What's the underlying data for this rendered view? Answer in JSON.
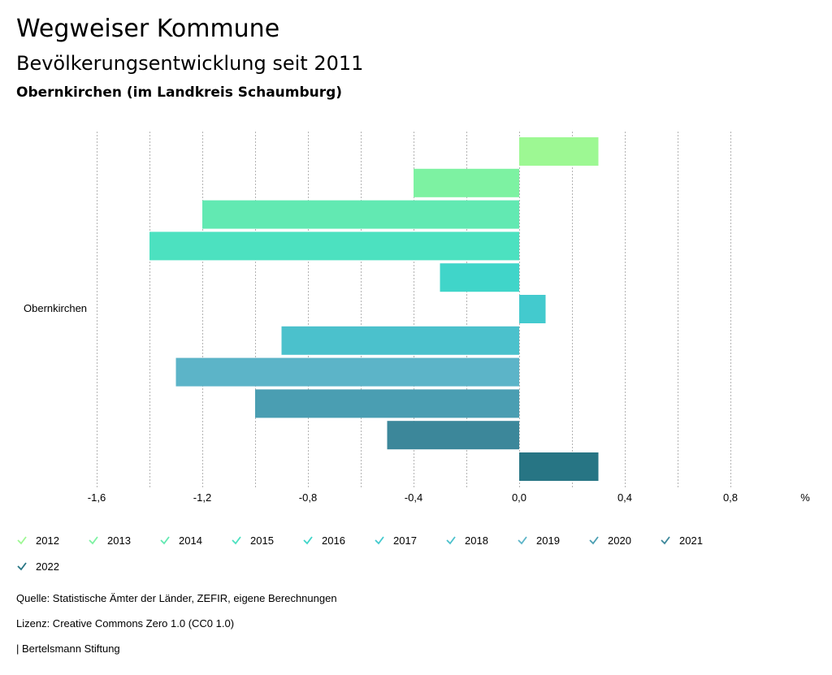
{
  "header": {
    "title": "Wegweiser Kommune",
    "subtitle": "Bevölkerungsentwicklung seit 2011",
    "region": "Obernkirchen (im Landkreis Schaumburg)"
  },
  "chart_data": {
    "type": "bar",
    "orientation": "horizontal",
    "categories": [
      "Obernkirchen"
    ],
    "series": [
      {
        "name": "2012",
        "values": [
          0.3
        ],
        "color": "#9df893"
      },
      {
        "name": "2013",
        "values": [
          -0.4
        ],
        "color": "#7df2a2"
      },
      {
        "name": "2014",
        "values": [
          -1.2
        ],
        "color": "#62e9b2"
      },
      {
        "name": "2015",
        "values": [
          -1.4
        ],
        "color": "#4ce1c0"
      },
      {
        "name": "2016",
        "values": [
          -0.3
        ],
        "color": "#40d5c9"
      },
      {
        "name": "2017",
        "values": [
          0.1
        ],
        "color": "#43cace"
      },
      {
        "name": "2018",
        "values": [
          -0.9
        ],
        "color": "#4bc1cc"
      },
      {
        "name": "2019",
        "values": [
          -1.3
        ],
        "color": "#5cb4c8"
      },
      {
        "name": "2020",
        "values": [
          -1.0
        ],
        "color": "#4a9eb2"
      },
      {
        "name": "2021",
        "values": [
          -0.5
        ],
        "color": "#3c879a"
      },
      {
        "name": "2022",
        "values": [
          0.3
        ],
        "color": "#277584"
      }
    ],
    "xlim": [
      -1.6,
      1.0
    ],
    "xticks": [
      -1.6,
      -1.2,
      -0.8,
      -0.4,
      0.0,
      0.4,
      0.8
    ],
    "xtick_labels": [
      "-1,6",
      "-1,2",
      "-0,8",
      "-0,4",
      "0,0",
      "0,4",
      "0,8"
    ],
    "grid_step": 0.2,
    "xlabel": "%",
    "ylabel": "",
    "grid": true,
    "legend_position": "bottom"
  },
  "footer": {
    "source": "Quelle: Statistische Ämter der Länder, ZEFIR, eigene Berechnungen",
    "license": "Lizenz: Creative Commons Zero 1.0 (CC0 1.0)",
    "publisher": "| Bertelsmann Stiftung"
  }
}
